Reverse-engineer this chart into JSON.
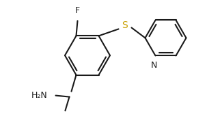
{
  "bg_color": "#ffffff",
  "line_color": "#1a1a1a",
  "S_color": "#c8a000",
  "bond_lw": 1.5,
  "figsize": [
    3.03,
    1.71
  ],
  "dpi": 100,
  "xlim": [
    0,
    303
  ],
  "ylim": [
    0,
    171
  ]
}
